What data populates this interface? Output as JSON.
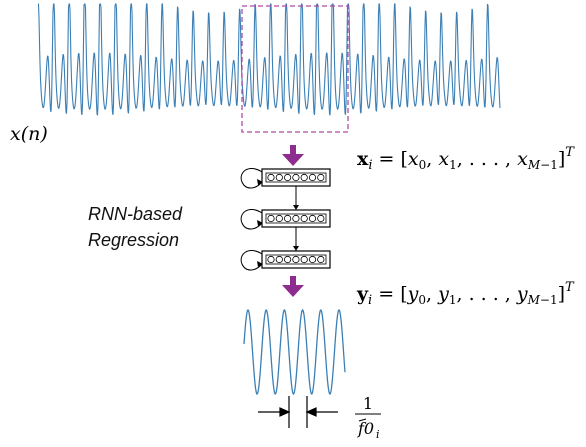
{
  "signal": {
    "label": "x(n)",
    "color": "#3b7fb5",
    "highlight_color": "#b04aa8"
  },
  "input_vector": {
    "lhs": "x",
    "subscript": "i",
    "rhs": "= [x",
    "elements": [
      "0",
      "1",
      "M−1"
    ],
    "close": "]",
    "superscript": "T"
  },
  "model": {
    "label_line1": "RNN-based",
    "label_line2": "Regression",
    "layers": 3,
    "units_per_layer": 7,
    "arrow_color": "#8e2c8f"
  },
  "output_vector": {
    "lhs": "y",
    "subscript": "i",
    "elements": [
      "0",
      "1",
      "M−1"
    ],
    "superscript": "T"
  },
  "period": {
    "numerator": "1",
    "denominator_main": "f0",
    "denominator_sub": "i"
  }
}
